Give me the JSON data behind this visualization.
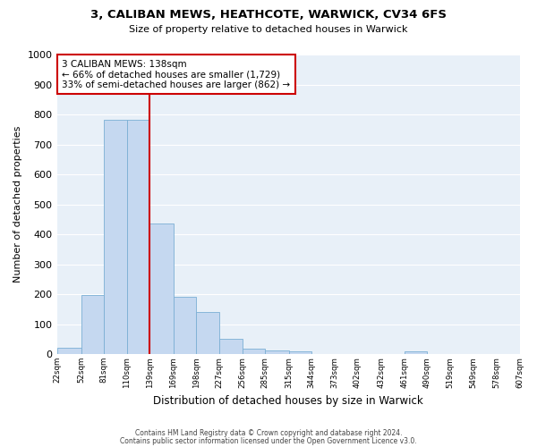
{
  "title": "3, CALIBAN MEWS, HEATHCOTE, WARWICK, CV34 6FS",
  "subtitle": "Size of property relative to detached houses in Warwick",
  "xlabel": "Distribution of detached houses by size in Warwick",
  "ylabel": "Number of detached properties",
  "bar_color": "#c5d8f0",
  "bar_edge_color": "#7bafd4",
  "background_color": "#e8f0f8",
  "grid_color": "#ffffff",
  "bins": [
    22,
    52,
    81,
    110,
    139,
    169,
    198,
    227,
    256,
    285,
    315,
    344,
    373,
    402,
    432,
    461,
    490,
    519,
    549,
    578,
    607
  ],
  "bar_heights": [
    20,
    197,
    782,
    782,
    437,
    191,
    142,
    50,
    18,
    12,
    10,
    0,
    0,
    0,
    0,
    10,
    0,
    0,
    0,
    0
  ],
  "tick_labels": [
    "22sqm",
    "52sqm",
    "81sqm",
    "110sqm",
    "139sqm",
    "169sqm",
    "198sqm",
    "227sqm",
    "256sqm",
    "285sqm",
    "315sqm",
    "344sqm",
    "373sqm",
    "402sqm",
    "432sqm",
    "461sqm",
    "490sqm",
    "519sqm",
    "549sqm",
    "578sqm",
    "607sqm"
  ],
  "vline_x": 139,
  "vline_color": "#cc0000",
  "annotation_text": "3 CALIBAN MEWS: 138sqm\n← 66% of detached houses are smaller (1,729)\n33% of semi-detached houses are larger (862) →",
  "annotation_box_edge": "#cc0000",
  "ylim": [
    0,
    1000
  ],
  "yticks": [
    0,
    100,
    200,
    300,
    400,
    500,
    600,
    700,
    800,
    900,
    1000
  ],
  "footer_line1": "Contains HM Land Registry data © Crown copyright and database right 2024.",
  "footer_line2": "Contains public sector information licensed under the Open Government Licence v3.0."
}
